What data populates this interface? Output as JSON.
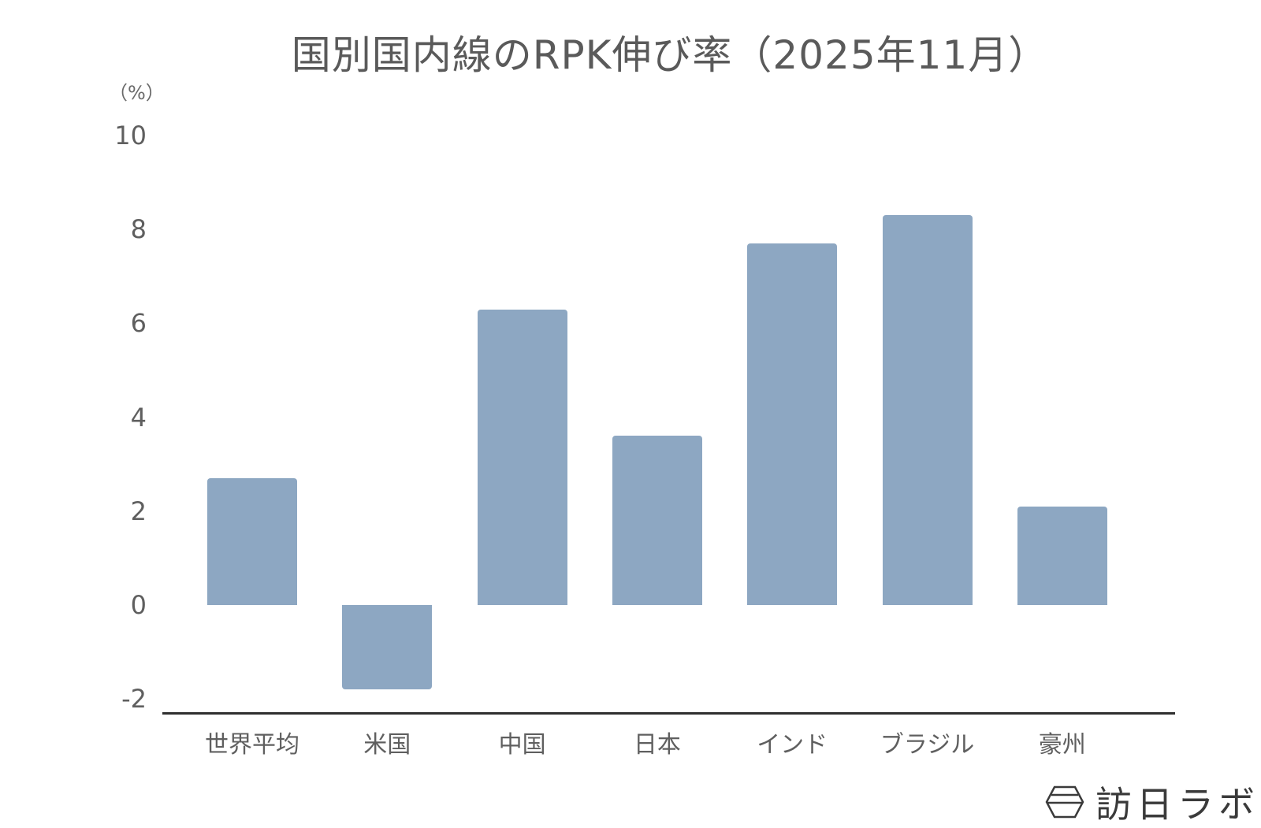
{
  "chart_data": {
    "type": "bar",
    "title": "国別国内線のRPK伸び率（2025年11月）",
    "xlabel": "",
    "ylabel": "（%）",
    "categories": [
      "世界平均",
      "米国",
      "中国",
      "日本",
      "インド",
      "ブラジル",
      "豪州"
    ],
    "values": [
      2.7,
      -1.8,
      6.3,
      3.6,
      7.7,
      8.3,
      2.1
    ],
    "ylim": [
      -2,
      10
    ],
    "yticks": [
      10,
      8,
      6,
      4,
      2,
      0,
      -2
    ],
    "grid": false,
    "legend": null,
    "bar_color": "#8da7c2"
  },
  "header": {
    "title": "国別国内線のRPK伸び率（2025年11月）",
    "unit": "（%）"
  },
  "yaxis": {
    "ticks": [
      "10",
      "8",
      "6",
      "4",
      "2",
      "0",
      "-2"
    ]
  },
  "xaxis": {
    "labels": [
      "世界平均",
      "米国",
      "中国",
      "日本",
      "インド",
      "ブラジル",
      "豪州"
    ]
  },
  "logo": {
    "text": "訪日ラボ"
  }
}
